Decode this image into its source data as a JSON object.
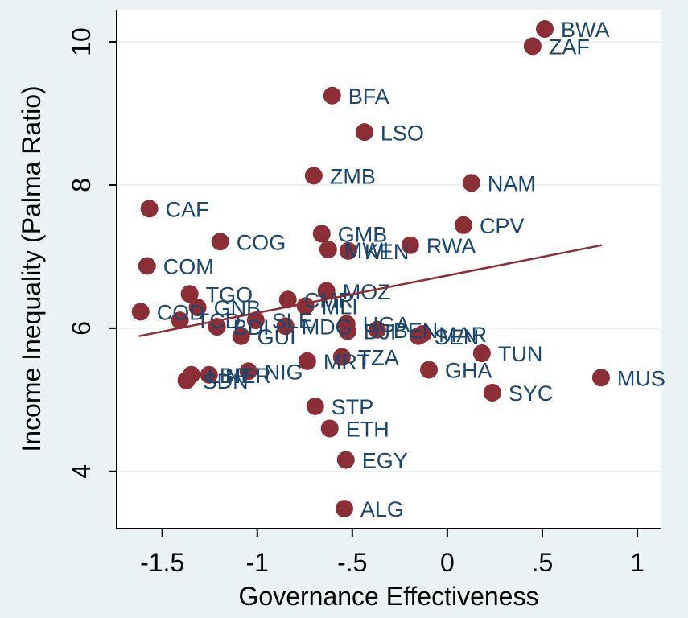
{
  "chart_data": {
    "type": "scatter",
    "x_label": "Governance Effectiveness",
    "y_label": "Income Inequality (Palma Ratio)",
    "xlim": [
      -1.74,
      1.127
    ],
    "ylim": [
      3.2,
      10.45
    ],
    "xticks": [
      {
        "value": -1.5,
        "label": "-1.5"
      },
      -1,
      {
        "value": -0.5,
        "label": "-.5"
      },
      0,
      {
        "value": 0.5,
        "label": ".5"
      },
      1
    ],
    "yticks": [
      4,
      6,
      8,
      10
    ],
    "grid": true,
    "color": "#8b2e35",
    "label_color": "#1a476f",
    "points": {
      "labels": [
        "BWA",
        "ZAF",
        "BFA",
        "LSO",
        "ZMB",
        "NAM",
        "CAF",
        "CPV",
        "GMB",
        "COG",
        "MWI",
        "KEN",
        "RWA",
        "COM",
        "MOZ",
        "TGO",
        "COD",
        "GNB",
        "TCD",
        "CMR",
        "MLI",
        "SLE",
        "GUI",
        "MDG",
        "BDI",
        "UGA",
        "DJI",
        "BEN",
        "SEN",
        "MAR",
        "TUN",
        "GHA",
        "SYC",
        "MUS",
        "MRT",
        "TZA",
        "LBR",
        "SDN",
        "NER",
        "NIG",
        "STP",
        "ETH",
        "EGY",
        "ALG"
      ],
      "x": [
        0.513,
        0.449,
        -0.606,
        -0.436,
        -0.703,
        0.127,
        -1.568,
        0.085,
        -0.661,
        -1.195,
        -0.627,
        -0.521,
        -0.195,
        -1.58,
        -0.636,
        -1.356,
        -1.614,
        -1.314,
        -1.407,
        -0.839,
        -0.746,
        -1.008,
        -1.085,
        -0.852,
        -1.212,
        -0.53,
        -0.525,
        -0.369,
        -0.153,
        -0.13,
        0.182,
        -0.097,
        0.237,
        0.809,
        -0.737,
        -0.555,
        -1.347,
        -1.373,
        -1.254,
        -1.047,
        -0.695,
        -0.619,
        -0.534,
        -0.542
      ],
      "y": [
        10.18,
        9.94,
        9.25,
        8.74,
        8.13,
        8.03,
        7.67,
        7.44,
        7.32,
        7.21,
        7.1,
        7.08,
        7.16,
        6.87,
        6.52,
        6.48,
        6.23,
        6.29,
        6.11,
        6.4,
        6.31,
        6.11,
        5.89,
        6.03,
        6.02,
        6.06,
        5.96,
        5.98,
        5.89,
        5.92,
        5.65,
        5.42,
        5.1,
        5.31,
        5.54,
        5.6,
        5.35,
        5.27,
        5.35,
        5.4,
        4.91,
        4.6,
        4.16,
        3.48
      ]
    },
    "fit": {
      "color": "#8b2e35",
      "x": [
        -1.623,
        0.814
      ],
      "y": [
        5.89,
        7.16
      ]
    }
  }
}
